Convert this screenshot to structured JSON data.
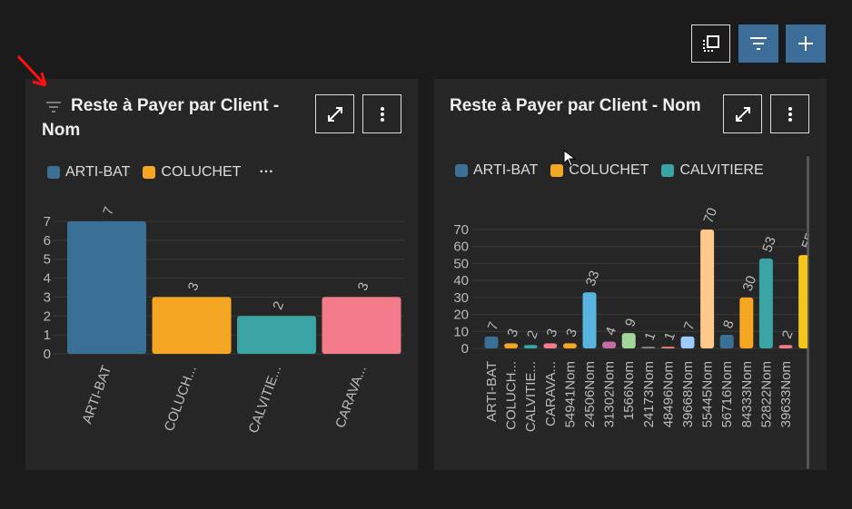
{
  "panels": [
    {
      "title": "Reste à Payer par Client - Nom",
      "legend": [
        {
          "name": "ARTI-BAT",
          "color": "#3a6f96"
        },
        {
          "name": "COLUCHET",
          "color": "#f5a623"
        }
      ],
      "legend_more": "···",
      "chart": {
        "type": "bar",
        "categories": [
          "ARTI-BAT",
          "COLUCH...",
          "CALVITIE...",
          "CARAVA..."
        ],
        "values": [
          7,
          3,
          2,
          3
        ],
        "colors": [
          "#3a6f96",
          "#f5a623",
          "#3aa3a3",
          "#f47b8a"
        ],
        "ylim": [
          0,
          7
        ],
        "yticks": [
          0,
          1,
          2,
          3,
          4,
          5,
          6,
          7
        ],
        "grid": true
      }
    },
    {
      "title": "Reste à Payer par Client - Nom",
      "legend": [
        {
          "name": "ARTI-BAT",
          "color": "#3a6f96"
        },
        {
          "name": "COLUCHET",
          "color": "#f5a623"
        },
        {
          "name": "CALVITIERE",
          "color": "#3aa3a3"
        }
      ],
      "chart": {
        "type": "bar",
        "categories": [
          "ARTI-BAT",
          "COLUCH...",
          "CALVITIE...",
          "CARAVA...",
          "54941Nom",
          "24506Nom",
          "31302Nom",
          "1566Nom",
          "24173Nom",
          "48496Nom",
          "39668Nom",
          "55445Nom",
          "56716Nom",
          "84333Nom",
          "52822Nom",
          "39633Nom",
          null
        ],
        "values": [
          7,
          3,
          2,
          3,
          3,
          33,
          4,
          9,
          1,
          1,
          7,
          70,
          8,
          30,
          53,
          2,
          55
        ],
        "colors": [
          "#3a6f96",
          "#f5a623",
          "#3aa3a3",
          "#f47b8a",
          "#f5a623",
          "#5ab4e0",
          "#c06fa0",
          "#a3d69b",
          "#888888",
          "#f08080",
          "#9ecbff",
          "#ffc98b",
          "#3a6f96",
          "#f5a623",
          "#3aa3a3",
          "#f47b8a",
          "#f5c518"
        ],
        "ylim": [
          0,
          70
        ],
        "yticks": [
          0,
          10,
          20,
          30,
          40,
          50,
          60,
          70
        ],
        "grid": true
      }
    }
  ]
}
